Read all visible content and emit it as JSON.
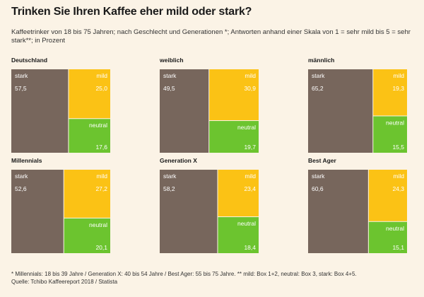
{
  "title": "Trinken Sie Ihren Kaffee eher mild oder stark?",
  "subtitle": "Kaffeetrinker von 18 bis 75 Jahren; nach Geschlecht und Generationen *; Antworten anhand einer Skala von 1 = sehr mild bis 5 = sehr stark**; in Prozent",
  "colors": {
    "stark": "#77665c",
    "mild": "#fbc215",
    "neutral": "#6cc42f",
    "background": "#fbf3e6"
  },
  "segment_labels": {
    "stark": "stark",
    "mild": "mild",
    "neutral": "neutral"
  },
  "chart_data": {
    "type": "treemap",
    "title": "Trinken Sie Ihren Kaffee eher mild oder stark?",
    "unit": "%",
    "series_names": [
      "stark",
      "mild",
      "neutral"
    ],
    "panels": [
      {
        "label": "Deutschland",
        "stark": 57.5,
        "mild": 25.0,
        "neutral": 17.6,
        "stark_text": "57,5",
        "mild_text": "25,0",
        "neutral_text": "17,6"
      },
      {
        "label": "weiblich",
        "stark": 49.5,
        "mild": 30.9,
        "neutral": 19.7,
        "stark_text": "49,5",
        "mild_text": "30,9",
        "neutral_text": "19,7"
      },
      {
        "label": "männlich",
        "stark": 65.2,
        "mild": 19.3,
        "neutral": 15.5,
        "stark_text": "65,2",
        "mild_text": "19,3",
        "neutral_text": "15,5"
      },
      {
        "label": "Millennials",
        "stark": 52.6,
        "mild": 27.2,
        "neutral": 20.1,
        "stark_text": "52,6",
        "mild_text": "27,2",
        "neutral_text": "20,1"
      },
      {
        "label": "Generation X",
        "stark": 58.2,
        "mild": 23.4,
        "neutral": 18.4,
        "stark_text": "58,2",
        "mild_text": "23,4",
        "neutral_text": "18,4"
      },
      {
        "label": "Best Ager",
        "stark": 60.6,
        "mild": 24.3,
        "neutral": 15.1,
        "stark_text": "60,6",
        "mild_text": "24,3",
        "neutral_text": "15,1"
      }
    ]
  },
  "footnote": {
    "line1": "* Millennials: 18 bis 39 Jahre / Generation X: 40 bis 54 Jahre / Best Ager: 55 bis 75 Jahre. ** mild: Box 1+2, neutral: Box 3, stark: Box 4+5.",
    "line2": "Quelle: Tchibo Kaffeereport 2018 / Statista"
  }
}
